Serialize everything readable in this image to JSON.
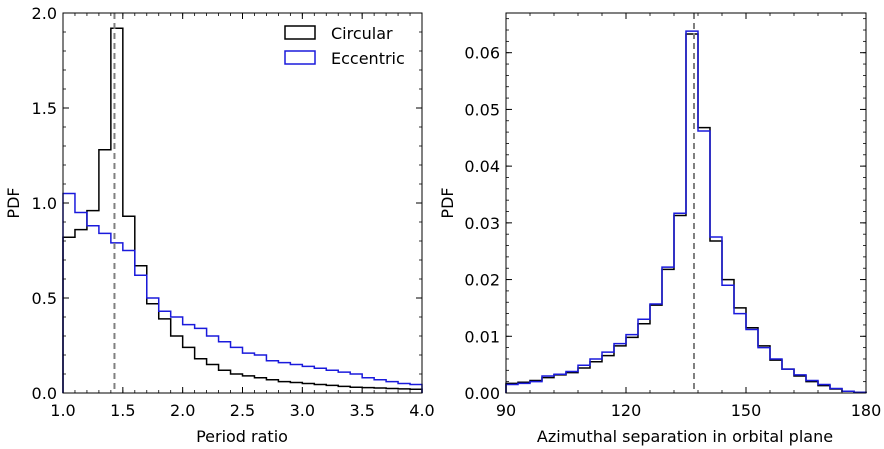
{
  "chart_data": [
    {
      "type": "histogram",
      "xlabel": "Period ratio",
      "ylabel": "PDF",
      "xlim": [
        1.0,
        4.0
      ],
      "ylim": [
        0.0,
        2.0
      ],
      "xticks": [
        1.0,
        1.5,
        2.0,
        2.5,
        3.0,
        3.5,
        4.0
      ],
      "xtick_labels": [
        "1.0",
        "1.5",
        "2.0",
        "2.5",
        "3.0",
        "3.5",
        "4.0"
      ],
      "yticks": [
        0.0,
        0.5,
        1.0,
        1.5,
        2.0
      ],
      "ytick_labels": [
        "0.0",
        "0.5",
        "1.0",
        "1.5",
        "2.0"
      ],
      "vline": 1.43,
      "legend": "top-right",
      "bin_edges": [
        1.0,
        1.1,
        1.2,
        1.3,
        1.4,
        1.5,
        1.6,
        1.7,
        1.8,
        1.9,
        2.0,
        2.1,
        2.2,
        2.3,
        2.4,
        2.5,
        2.6,
        2.7,
        2.8,
        2.9,
        3.0,
        3.1,
        3.2,
        3.3,
        3.4,
        3.5,
        3.6,
        3.7,
        3.8,
        3.9,
        4.0
      ],
      "series": [
        {
          "name": "Circular",
          "color": "#000000",
          "values": [
            0.82,
            0.86,
            0.96,
            1.28,
            1.92,
            0.93,
            0.67,
            0.47,
            0.39,
            0.3,
            0.24,
            0.18,
            0.15,
            0.12,
            0.1,
            0.09,
            0.08,
            0.07,
            0.06,
            0.055,
            0.05,
            0.045,
            0.04,
            0.035,
            0.03,
            0.028,
            0.026,
            0.024,
            0.022,
            0.02
          ]
        },
        {
          "name": "Eccentric",
          "color": "#1a1adc",
          "values": [
            1.05,
            0.95,
            0.88,
            0.84,
            0.79,
            0.75,
            0.62,
            0.5,
            0.43,
            0.4,
            0.36,
            0.34,
            0.3,
            0.27,
            0.24,
            0.21,
            0.2,
            0.17,
            0.16,
            0.15,
            0.14,
            0.13,
            0.12,
            0.11,
            0.1,
            0.08,
            0.07,
            0.06,
            0.05,
            0.045
          ]
        }
      ]
    },
    {
      "type": "histogram",
      "xlabel": "Azimuthal separation in orbital plane",
      "ylabel": "PDF",
      "xlim": [
        90,
        180
      ],
      "ylim": [
        0.0,
        0.067
      ],
      "xticks": [
        90,
        120,
        150,
        180
      ],
      "xtick_labels": [
        "90",
        "120",
        "150",
        "180"
      ],
      "yticks": [
        0.0,
        0.01,
        0.02,
        0.03,
        0.04,
        0.05,
        0.06
      ],
      "ytick_labels": [
        "0.00",
        "0.01",
        "0.02",
        "0.03",
        "0.04",
        "0.05",
        "0.06"
      ],
      "vline": 137,
      "bin_edges": [
        90,
        93,
        96,
        99,
        102,
        105,
        108,
        111,
        114,
        117,
        120,
        123,
        126,
        129,
        132,
        135,
        138,
        141,
        144,
        147,
        150,
        153,
        156,
        159,
        162,
        165,
        168,
        171,
        174,
        177,
        180
      ],
      "series": [
        {
          "name": "Circular",
          "color": "#000000",
          "values": [
            0.0017,
            0.0019,
            0.0022,
            0.0027,
            0.0032,
            0.0036,
            0.0044,
            0.0055,
            0.0066,
            0.0083,
            0.0098,
            0.0122,
            0.0155,
            0.0218,
            0.0313,
            0.0633,
            0.0468,
            0.0268,
            0.02,
            0.015,
            0.0115,
            0.0083,
            0.0058,
            0.0042,
            0.003,
            0.002,
            0.0013,
            0.0007,
            0.0003,
            0.0001
          ]
        },
        {
          "name": "Eccentric",
          "color": "#1a1adc",
          "values": [
            0.0015,
            0.0017,
            0.002,
            0.003,
            0.0033,
            0.0038,
            0.0049,
            0.006,
            0.0072,
            0.0087,
            0.0103,
            0.013,
            0.0157,
            0.0222,
            0.0317,
            0.0638,
            0.0462,
            0.0275,
            0.019,
            0.014,
            0.0112,
            0.008,
            0.006,
            0.0042,
            0.0032,
            0.0022,
            0.0015,
            0.0008,
            0.0003,
            0.0001
          ]
        }
      ]
    }
  ]
}
